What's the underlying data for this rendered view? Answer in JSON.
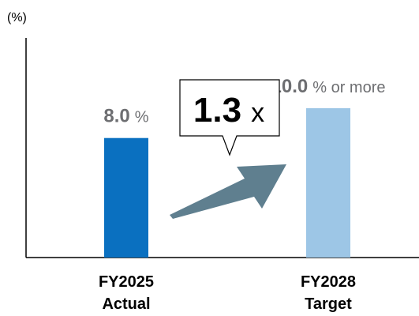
{
  "chart_data": {
    "type": "bar",
    "ylabel": "(%)",
    "ylim": [
      0,
      14.7
    ],
    "grid": false,
    "categories": [
      {
        "line1": "FY2025",
        "line2": "Actual"
      },
      {
        "line1": "FY2028",
        "line2": "Target"
      }
    ],
    "values": [
      8.0,
      10.0
    ],
    "data_labels": [
      {
        "number": "8.0",
        "unit": "%"
      },
      {
        "number": "10.0",
        "unit": "% or more"
      }
    ],
    "colors": [
      "#0a70c0",
      "#9dc6e6"
    ],
    "label_colors": [
      "#6d6e71",
      "#6d6e71"
    ],
    "annotation": {
      "value": "1.3",
      "suffix": "x",
      "arrow_color": "#5f7f8f"
    }
  }
}
